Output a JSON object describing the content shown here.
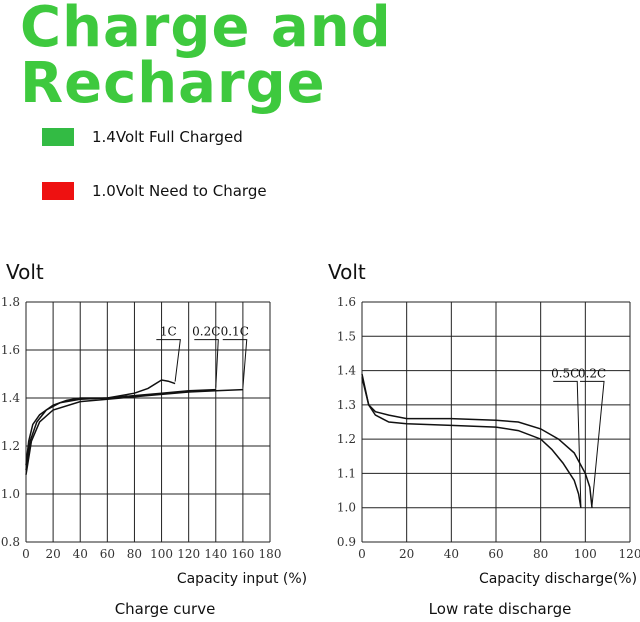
{
  "title": "Charge and Recharge",
  "legend": [
    {
      "label": "1.4Volt Full Charged",
      "color": "#33bb44"
    },
    {
      "label": "1.0Volt Need to Charge",
      "color": "#ee1111"
    }
  ],
  "chart_data": [
    {
      "type": "line",
      "ylabel": "Volt",
      "xlabel": "Capacity input (%)",
      "caption": "Charge curve",
      "xlim": [
        0,
        180
      ],
      "ylim": [
        0.8,
        1.8
      ],
      "xticks": [
        "0",
        "20",
        "40",
        "60",
        "80",
        "100",
        "120",
        "140",
        "160",
        "180"
      ],
      "yticks": [
        "0.8",
        "1.0",
        "1.2",
        "1.4",
        "1.6",
        "1.8"
      ],
      "grid": true,
      "annotations": [
        {
          "text": "1C",
          "x": 105,
          "y": 1.66
        },
        {
          "text": "0.2C",
          "x": 133,
          "y": 1.66
        },
        {
          "text": "0.1C",
          "x": 154,
          "y": 1.66
        }
      ],
      "series": [
        {
          "points": [
            [
              0,
              1.12
            ],
            [
              2,
              1.22
            ],
            [
              5,
              1.29
            ],
            [
              10,
              1.33
            ],
            [
              20,
              1.37
            ],
            [
              30,
              1.39
            ],
            [
              40,
              1.4
            ],
            [
              60,
              1.4
            ],
            [
              80,
              1.42
            ],
            [
              90,
              1.44
            ],
            [
              100,
              1.475
            ],
            [
              105,
              1.47
            ],
            [
              110,
              1.46
            ]
          ]
        },
        {
          "points": [
            [
              0,
              1.1
            ],
            [
              3,
              1.22
            ],
            [
              8,
              1.3
            ],
            [
              15,
              1.35
            ],
            [
              25,
              1.38
            ],
            [
              40,
              1.395
            ],
            [
              60,
              1.4
            ],
            [
              80,
              1.41
            ],
            [
              100,
              1.42
            ],
            [
              120,
              1.43
            ],
            [
              140,
              1.435
            ]
          ]
        },
        {
          "points": [
            [
              0,
              1.08
            ],
            [
              4,
              1.22
            ],
            [
              10,
              1.3
            ],
            [
              20,
              1.35
            ],
            [
              40,
              1.385
            ],
            [
              60,
              1.395
            ],
            [
              80,
              1.405
            ],
            [
              100,
              1.415
            ],
            [
              120,
              1.425
            ],
            [
              140,
              1.43
            ],
            [
              160,
              1.435
            ]
          ]
        }
      ]
    },
    {
      "type": "line",
      "ylabel": "Volt",
      "xlabel": "Capacity discharge(%)",
      "caption": "Low rate discharge",
      "xlim": [
        0,
        120
      ],
      "ylim": [
        0.9,
        1.6
      ],
      "xticks": [
        "0",
        "20",
        "40",
        "60",
        "80",
        "100",
        "120"
      ],
      "yticks": [
        "0.9",
        "1.0",
        "1.1",
        "1.2",
        "1.3",
        "1.4",
        "1.5",
        "1.6"
      ],
      "grid": true,
      "annotations": [
        {
          "text": "0.5C",
          "x": 91,
          "y": 1.38
        },
        {
          "text": "0.2C",
          "x": 103,
          "y": 1.38
        }
      ],
      "series": [
        {
          "points": [
            [
              0,
              1.38
            ],
            [
              3,
              1.3
            ],
            [
              6,
              1.27
            ],
            [
              12,
              1.25
            ],
            [
              20,
              1.245
            ],
            [
              40,
              1.24
            ],
            [
              60,
              1.235
            ],
            [
              70,
              1.225
            ],
            [
              80,
              1.2
            ],
            [
              85,
              1.17
            ],
            [
              90,
              1.13
            ],
            [
              95,
              1.08
            ],
            [
              97,
              1.04
            ],
            [
              98,
              1.0
            ]
          ]
        },
        {
          "points": [
            [
              0,
              1.39
            ],
            [
              3,
              1.3
            ],
            [
              6,
              1.28
            ],
            [
              12,
              1.27
            ],
            [
              20,
              1.26
            ],
            [
              40,
              1.26
            ],
            [
              60,
              1.255
            ],
            [
              70,
              1.25
            ],
            [
              80,
              1.23
            ],
            [
              88,
              1.2
            ],
            [
              95,
              1.16
            ],
            [
              100,
              1.1
            ],
            [
              102,
              1.06
            ],
            [
              103,
              1.0
            ]
          ]
        }
      ]
    }
  ]
}
